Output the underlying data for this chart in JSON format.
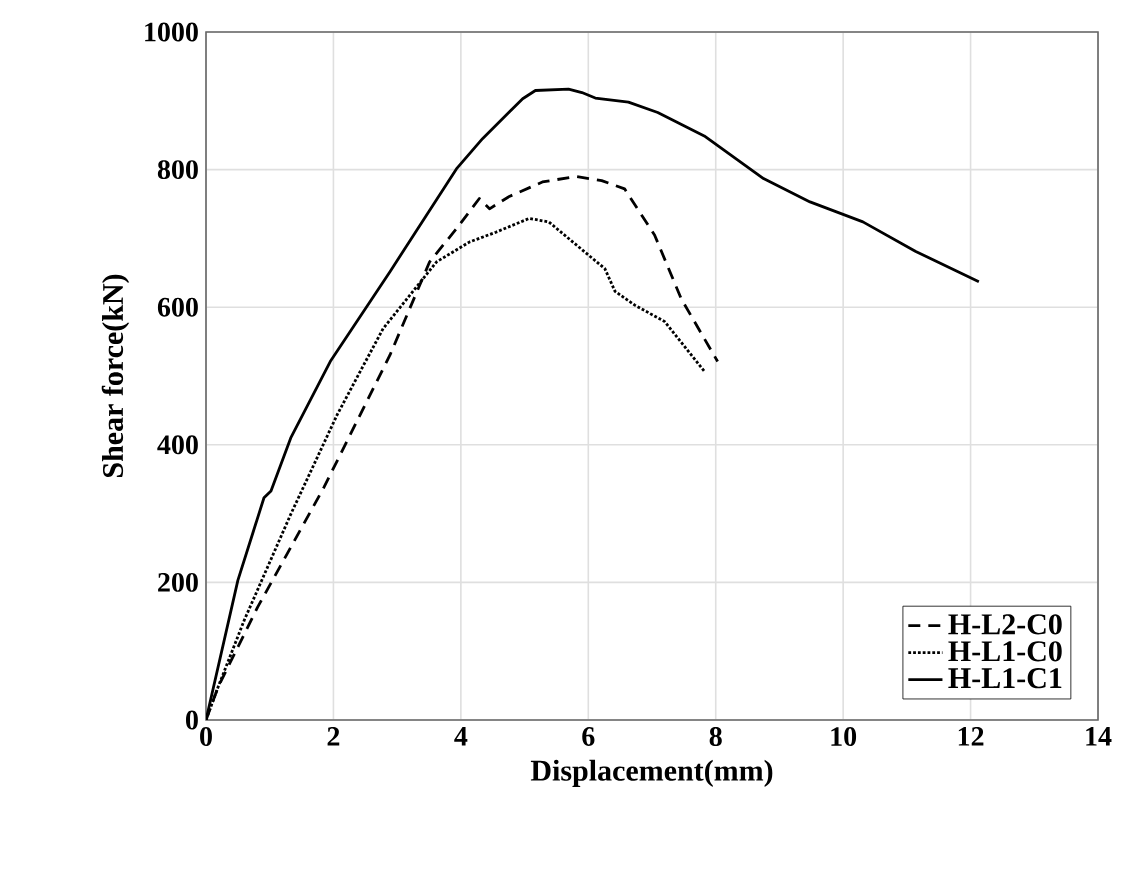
{
  "chart_data": {
    "type": "line",
    "xlabel": "Displacement(mm)",
    "ylabel": "Shear force(kN)",
    "xlim": [
      0,
      14
    ],
    "ylim": [
      0,
      1000
    ],
    "xticks": [
      0,
      2,
      4,
      6,
      8,
      10,
      12,
      14
    ],
    "yticks": [
      0,
      200,
      400,
      600,
      800,
      1000
    ],
    "grid": true,
    "legend": "bottom right",
    "series": [
      {
        "name": "H-L2-C0",
        "color": "#000000",
        "line_style": "dashed",
        "x": [
          0,
          0.19,
          0.81,
          1.85,
          2.89,
          3.51,
          3.93,
          4.29,
          4.45,
          4.76,
          5.28,
          5.8,
          6.21,
          6.57,
          7.04,
          7.46,
          8.03
        ],
        "values": [
          0,
          48,
          164,
          338,
          531,
          666,
          714,
          758,
          743,
          761,
          782,
          790,
          784,
          772,
          705,
          612,
          521
        ]
      },
      {
        "name": "H-L1-C0",
        "color": "#000000",
        "line_style": "dotted",
        "x": [
          0,
          0.19,
          0.6,
          1.33,
          2.06,
          2.78,
          3.62,
          4.14,
          4.55,
          5.07,
          5.38,
          6.0,
          6.26,
          6.42,
          6.73,
          7.2,
          7.82
        ],
        "values": [
          0,
          48,
          145,
          299,
          444,
          569,
          666,
          695,
          709,
          729,
          724,
          676,
          656,
          623,
          603,
          579,
          507
        ]
      },
      {
        "name": "H-L1-C1",
        "color": "#000000",
        "line_style": "solid",
        "x": [
          0,
          0.5,
          0.91,
          1.02,
          1.33,
          1.95,
          2.89,
          3.93,
          4.34,
          4.97,
          5.17,
          5.69,
          5.9,
          6.11,
          6.63,
          7.09,
          7.82,
          8.75,
          9.48,
          10.31,
          11.14,
          12.13
        ],
        "values": [
          0,
          203,
          323,
          333,
          410,
          521,
          652,
          801,
          845,
          903,
          915,
          917,
          912,
          904,
          898,
          883,
          849,
          787,
          753,
          724,
          681,
          637
        ]
      }
    ]
  }
}
